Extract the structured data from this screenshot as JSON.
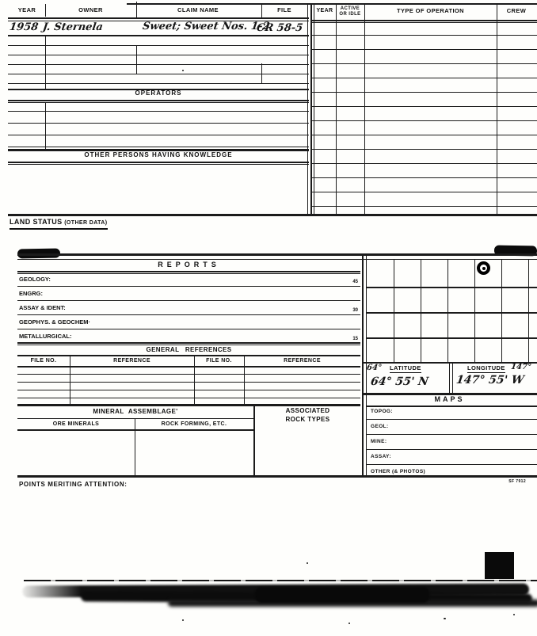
{
  "claims_table": {
    "col_year": "YEAR",
    "col_owner": "OWNER",
    "col_claim": "CLAIM NAME",
    "col_file": "FILE",
    "entry_year": "1958",
    "entry_owner": "J. Sternela",
    "entry_claim": "Sweet; Sweet Nos. 1-2",
    "entry_file": "CR 58-5"
  },
  "operations_table": {
    "col_year": "YEAR",
    "col_active": "ACTIVE OR IDLE",
    "col_type": "TYPE OF OPERATION",
    "col_crew": "CREW"
  },
  "operators": {
    "title": "OPERATORS"
  },
  "other_persons": {
    "title": "OTHER PERSONS HAVING KNOWLEDGE"
  },
  "land_status": {
    "label": "LAND STATUS",
    "paren": "(OTHER DATA)"
  },
  "reports": {
    "title": "REPORTS",
    "rows": [
      {
        "label": "GEOLOGY:",
        "line_no": "45"
      },
      {
        "label": "ENGRG:",
        "line_no": ""
      },
      {
        "label": "ASSAY & IDENT:",
        "line_no": "30"
      },
      {
        "label": "GEOPHYS. & GEOCHEM·",
        "line_no": ""
      },
      {
        "label": "METALLURGICAL:",
        "line_no": "15"
      }
    ]
  },
  "general_references": {
    "title": "GENERAL REFERENCES",
    "col1": "FILE NO.",
    "col2": "REFERENCE",
    "col3": "FILE NO.",
    "col4": "REFERENCE"
  },
  "mineral_assemblage": {
    "title": "MINERAL ASSEMBLAGE'",
    "col_ore": "ORE MINERALS",
    "col_rock": "ROCK FORMING, ETC.",
    "associated_line1": "ASSOCIATED",
    "associated_line2": "ROCK TYPES"
  },
  "location": {
    "latitude_note": "64°",
    "latitude_label": "LATITUDE",
    "latitude_value": "64° 55' N",
    "longitude_label": "LONGITUDE",
    "longitude_note": "147°",
    "longitude_value": "147° 55' W"
  },
  "maps": {
    "title": "MAPS",
    "rows": [
      "TOPOG:",
      "GEOL:",
      "MINE:",
      "ASSAY:",
      "OTHER (& PHOTOS)"
    ]
  },
  "footer": {
    "points_label": "POINTS MERITING ATTENTION:",
    "form_number": "SF 7912"
  }
}
